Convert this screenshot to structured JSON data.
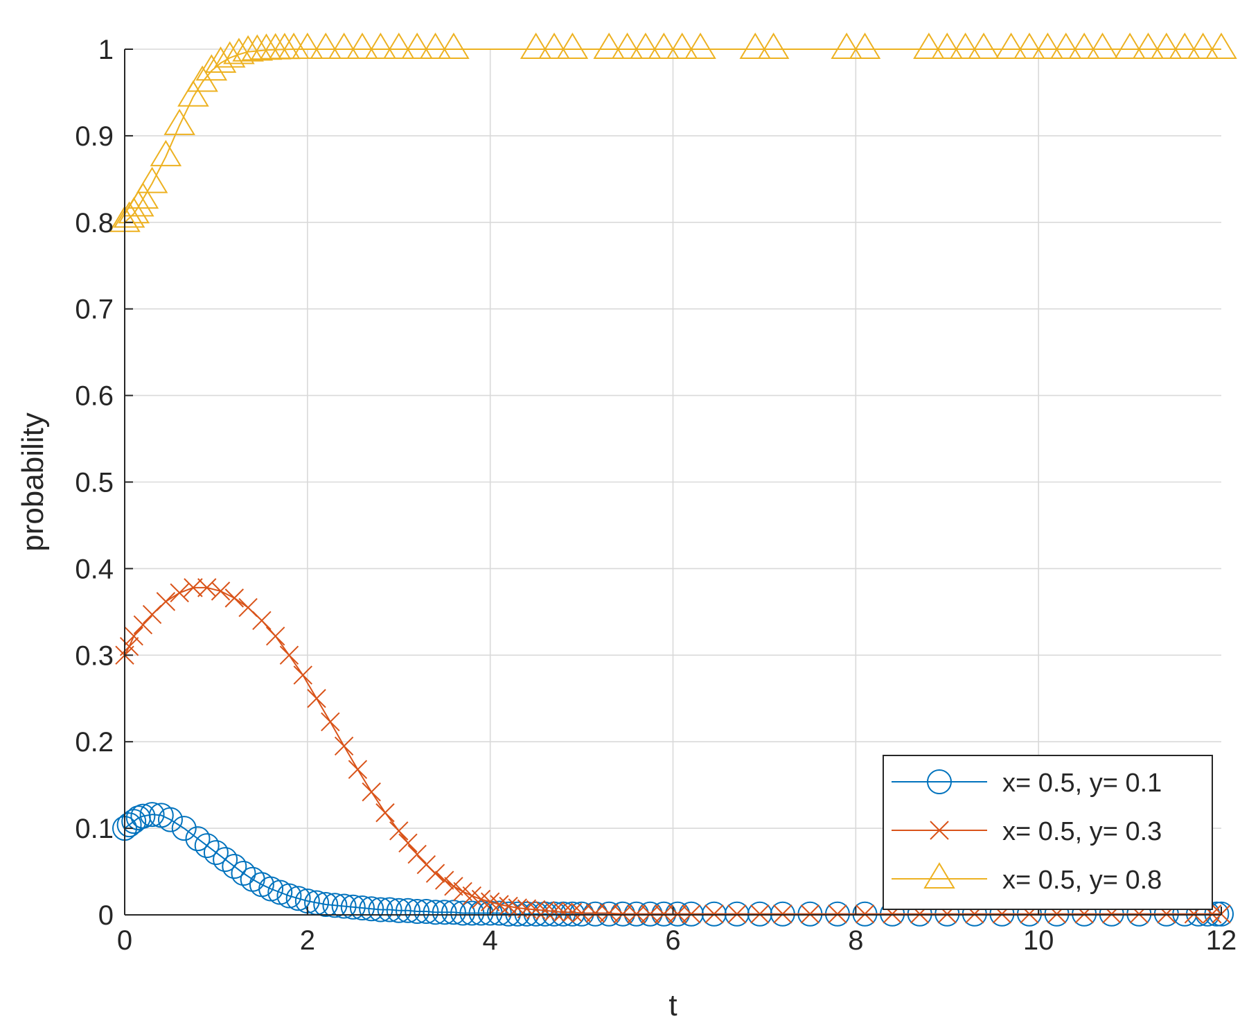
{
  "chart_data": {
    "type": "line",
    "xlabel": "t",
    "ylabel": "probability",
    "xlim": [
      0,
      12
    ],
    "ylim": [
      0,
      1
    ],
    "grid": true,
    "x_ticks": [
      0,
      2,
      4,
      6,
      8,
      10,
      12
    ],
    "x_tick_labels": [
      "0",
      "2",
      "4",
      "6",
      "8",
      "10",
      "12"
    ],
    "y_ticks": [
      0,
      0.1,
      0.2,
      0.3,
      0.4,
      0.5,
      0.6,
      0.7,
      0.8,
      0.9,
      1
    ],
    "y_tick_labels": [
      "0",
      "0.1",
      "0.2",
      "0.3",
      "0.4",
      "0.5",
      "0.6",
      "0.7",
      "0.8",
      "0.9",
      "1"
    ],
    "legend_position": "bottom-right",
    "series": [
      {
        "name": "x= 0.5, y= 0.1",
        "color": "#0072BD",
        "marker": "circle",
        "x": [
          0,
          0.05,
          0.1,
          0.15,
          0.2,
          0.3,
          0.4,
          0.5,
          0.65,
          0.8,
          0.9,
          1.0,
          1.1,
          1.2,
          1.3,
          1.4,
          1.5,
          1.6,
          1.7,
          1.8,
          1.9,
          2.0,
          2.1,
          2.2,
          2.3,
          2.4,
          2.5,
          2.6,
          2.7,
          2.8,
          2.9,
          3.0,
          3.1,
          3.2,
          3.3,
          3.4,
          3.5,
          3.6,
          3.7,
          3.8,
          3.9,
          4.0,
          4.1,
          4.2,
          4.3,
          4.4,
          4.5,
          4.6,
          4.7,
          4.8,
          4.9,
          5.0,
          5.15,
          5.3,
          5.45,
          5.6,
          5.75,
          5.9,
          6.05,
          6.2,
          6.45,
          6.7,
          6.95,
          7.2,
          7.5,
          7.8,
          8.1,
          8.4,
          8.7,
          9.0,
          9.3,
          9.6,
          9.9,
          10.2,
          10.5,
          10.8,
          11.1,
          11.4,
          11.6,
          11.75,
          11.85,
          11.95,
          12.0
        ],
        "y": [
          0.1,
          0.104,
          0.108,
          0.112,
          0.114,
          0.116,
          0.115,
          0.11,
          0.1,
          0.088,
          0.08,
          0.072,
          0.064,
          0.056,
          0.048,
          0.041,
          0.035,
          0.03,
          0.026,
          0.022,
          0.019,
          0.016,
          0.014,
          0.012,
          0.011,
          0.01,
          0.009,
          0.008,
          0.007,
          0.006,
          0.006,
          0.005,
          0.005,
          0.004,
          0.004,
          0.003,
          0.003,
          0.003,
          0.002,
          0.002,
          0.002,
          0.002,
          0.002,
          0.001,
          0.001,
          0.001,
          0.001,
          0.001,
          0.001,
          0.001,
          0.001,
          0.001,
          0.001,
          0.001,
          0.001,
          0.001,
          0.001,
          0.001,
          0.001,
          0.001,
          0.001,
          0.001,
          0.001,
          0.001,
          0.001,
          0.001,
          0.001,
          0.001,
          0.001,
          0.001,
          0.001,
          0.001,
          0.001,
          0.001,
          0.001,
          0.001,
          0.001,
          0.001,
          0.001,
          0.001,
          0.001,
          0.001,
          0.001
        ]
      },
      {
        "name": "x= 0.5, y= 0.3",
        "color": "#D95319",
        "marker": "x",
        "x": [
          0,
          0.05,
          0.1,
          0.2,
          0.3,
          0.45,
          0.6,
          0.75,
          0.9,
          1.05,
          1.2,
          1.35,
          1.5,
          1.65,
          1.8,
          1.95,
          2.1,
          2.25,
          2.4,
          2.55,
          2.7,
          2.85,
          3.0,
          3.1,
          3.2,
          3.3,
          3.4,
          3.5,
          3.6,
          3.7,
          3.8,
          3.9,
          4.0,
          4.1,
          4.2,
          4.3,
          4.4,
          4.5,
          4.6,
          4.7,
          4.8,
          4.9,
          5.0,
          5.15,
          5.3,
          5.45,
          5.6,
          5.75,
          5.9,
          6.05,
          6.2,
          6.45,
          6.7,
          6.95,
          7.2,
          7.5,
          7.8,
          8.1,
          8.4,
          8.7,
          9.0,
          9.3,
          9.6,
          9.9,
          10.2,
          10.5,
          10.8,
          11.1,
          11.4,
          11.7,
          11.9,
          12.0
        ],
        "y": [
          0.3,
          0.31,
          0.322,
          0.335,
          0.347,
          0.362,
          0.372,
          0.378,
          0.378,
          0.374,
          0.366,
          0.355,
          0.34,
          0.322,
          0.3,
          0.277,
          0.25,
          0.223,
          0.195,
          0.168,
          0.142,
          0.118,
          0.097,
          0.083,
          0.07,
          0.058,
          0.048,
          0.04,
          0.033,
          0.027,
          0.022,
          0.018,
          0.015,
          0.012,
          0.01,
          0.008,
          0.007,
          0.006,
          0.005,
          0.004,
          0.003,
          0.003,
          0.002,
          0.002,
          0.002,
          0.001,
          0.001,
          0.001,
          0.001,
          0.001,
          0.001,
          0.001,
          0.001,
          0.001,
          0.001,
          0.001,
          0.001,
          0.001,
          0.001,
          0.001,
          0.001,
          0.001,
          0.001,
          0.001,
          0.001,
          0.001,
          0.001,
          0.001,
          0.001,
          0.001,
          0.001,
          0.001
        ]
      },
      {
        "name": "x= 0.5, y= 0.8",
        "color": "#EDB120",
        "marker": "triangle",
        "x": [
          0,
          0.05,
          0.1,
          0.15,
          0.2,
          0.3,
          0.45,
          0.6,
          0.75,
          0.85,
          0.95,
          1.05,
          1.15,
          1.25,
          1.35,
          1.45,
          1.55,
          1.65,
          1.75,
          1.85,
          2.0,
          2.2,
          2.4,
          2.6,
          2.8,
          3.0,
          3.2,
          3.4,
          3.6,
          4.5,
          4.7,
          4.9,
          5.3,
          5.5,
          5.7,
          5.9,
          6.1,
          6.3,
          6.9,
          7.1,
          7.9,
          8.1,
          8.8,
          9.0,
          9.2,
          9.4,
          9.7,
          9.9,
          10.1,
          10.3,
          10.5,
          10.7,
          11.0,
          11.2,
          11.4,
          11.6,
          11.8,
          12.0
        ],
        "y": [
          0.8,
          0.805,
          0.81,
          0.818,
          0.827,
          0.845,
          0.876,
          0.912,
          0.945,
          0.962,
          0.975,
          0.984,
          0.99,
          0.994,
          0.997,
          0.998,
          0.999,
          0.9995,
          0.9998,
          1,
          1,
          1,
          1,
          1,
          1,
          1,
          1,
          1,
          1,
          1,
          1,
          1,
          1,
          1,
          1,
          1,
          1,
          1,
          1,
          1,
          1,
          1,
          1,
          1,
          1,
          1,
          1,
          1,
          1,
          1,
          1,
          1,
          1,
          1,
          1,
          1,
          1,
          1
        ]
      }
    ]
  }
}
